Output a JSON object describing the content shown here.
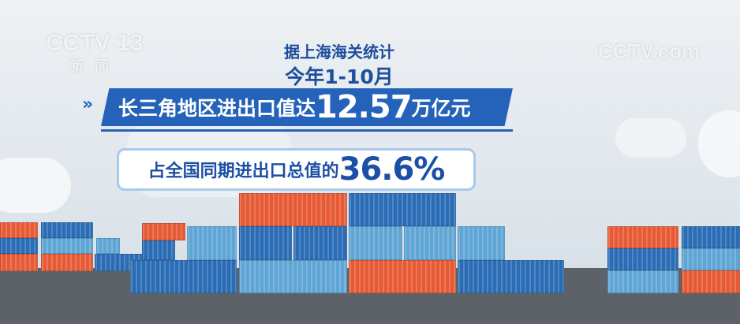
{
  "logos": {
    "left_channel": "CCTV 13",
    "left_subtitle": "新闻",
    "right_site": "CCTV.com"
  },
  "headline": {
    "source": "据上海海关统计",
    "period": "今年1-10月",
    "banner_prefix": "长三角地区进出口值达",
    "banner_value": "12.57",
    "banner_unit": "万亿元",
    "share_prefix": "占全国同期进出口总值的",
    "share_value": "36.6%"
  },
  "colors": {
    "brand_blue": "#2562b9",
    "container_orange": "#e65a35",
    "container_blue": "#2a6cb5",
    "container_light": "#5fa6d6"
  }
}
